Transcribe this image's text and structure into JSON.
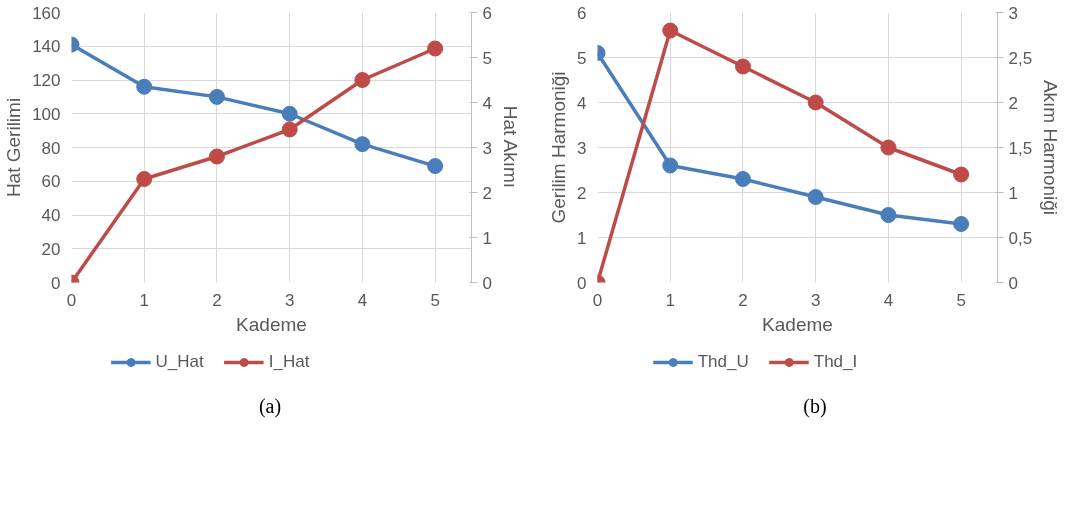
{
  "chart_data": [
    {
      "type": "line",
      "xlabel": "Kademe",
      "ylabel": "Hat Gerilimi",
      "y2label": "Hat Akımı",
      "x": [
        0,
        1,
        2,
        3,
        4,
        5
      ],
      "xlim": [
        0,
        5.5
      ],
      "xticks": [
        0,
        1,
        2,
        3,
        4,
        5
      ],
      "ylim": [
        0,
        160
      ],
      "yticks": [
        0,
        20,
        40,
        60,
        80,
        100,
        120,
        140,
        160
      ],
      "y2lim": [
        0,
        6
      ],
      "y2ticks": [
        0,
        1,
        2,
        3,
        4,
        5,
        6
      ],
      "grid": true,
      "legend": "bottom",
      "marker": "circle",
      "line_style": "solid",
      "annotations": [
        "(a)"
      ],
      "series": [
        {
          "name": "U_Hat",
          "color": "#4a7ebb",
          "values": [
            141,
            116,
            110,
            100,
            82,
            69
          ]
        },
        {
          "name": "I_Hat",
          "color": "#be4b48",
          "axis": "y2",
          "values": [
            0,
            2.3,
            2.8,
            3.4,
            4.5,
            5.2
          ]
        }
      ]
    },
    {
      "type": "line",
      "xlabel": "Kademe",
      "ylabel": "Gerilim Harmoniği",
      "y2label": "Akım Harmoniği",
      "x": [
        0,
        1,
        2,
        3,
        4,
        5
      ],
      "xlim": [
        0,
        5.5
      ],
      "xticks": [
        0,
        1,
        2,
        3,
        4,
        5
      ],
      "ylim": [
        0,
        6
      ],
      "yticks": [
        0,
        1,
        2,
        3,
        4,
        5,
        6
      ],
      "y2lim": [
        0,
        3
      ],
      "y2ticks": [
        0,
        {
          "value": 0.5,
          "label": "0,5"
        },
        1,
        {
          "value": 1.5,
          "label": "1,5"
        },
        2,
        {
          "value": 2.5,
          "label": "2,5"
        },
        3
      ],
      "grid": true,
      "legend": "bottom",
      "marker": "circle",
      "line_style": "solid",
      "annotations": [
        "(b)"
      ],
      "series": [
        {
          "name": "Thd_U",
          "color": "#4a7ebb",
          "values": [
            5.1,
            2.6,
            2.3,
            1.9,
            1.5,
            1.3
          ]
        },
        {
          "name": "Thd_I",
          "color": "#be4b48",
          "axis": "y2",
          "values": [
            0,
            2.8,
            2.4,
            2.0,
            1.5,
            1.2
          ]
        }
      ]
    }
  ]
}
